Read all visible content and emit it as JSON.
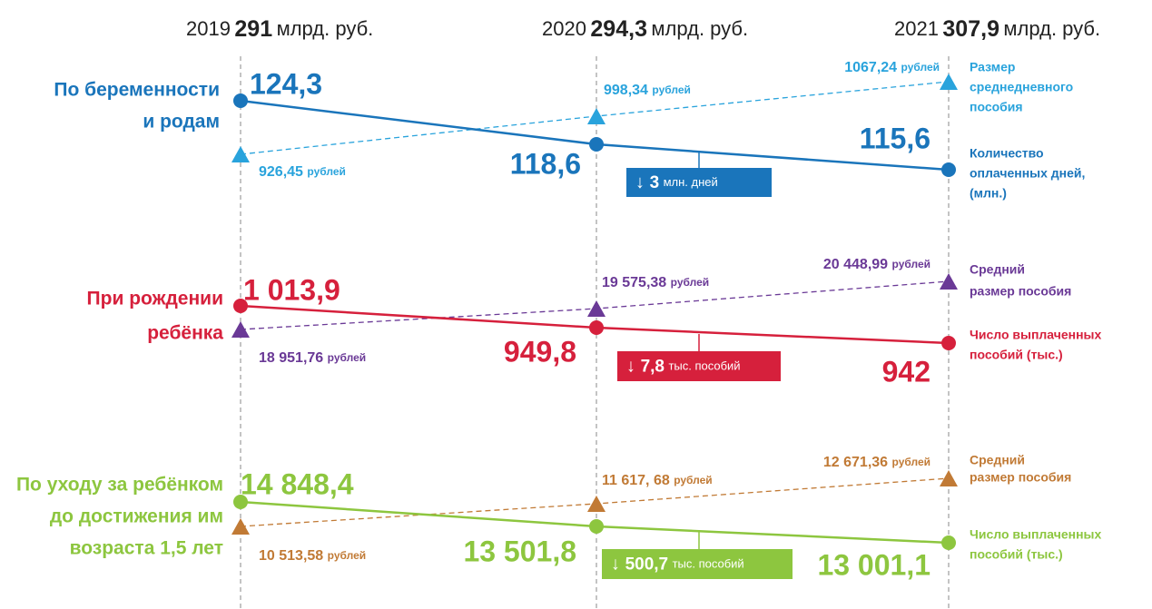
{
  "header": {
    "years": [
      {
        "year": "2019",
        "total": "291",
        "unit": "млрд. руб."
      },
      {
        "year": "2020",
        "total": "294,3",
        "unit": "млрд. руб."
      },
      {
        "year": "2021",
        "total": "307,9",
        "unit": "млрд. руб."
      }
    ]
  },
  "sections": [
    {
      "title": [
        "По беременности",
        "и родам"
      ],
      "count_color": "#1a75bb",
      "avg_color": "#29a3dc",
      "counts": [
        "124,3",
        "118,6",
        "115,6"
      ],
      "avgs": [
        "926,45",
        "998,34",
        "1067,24"
      ],
      "avg_unit": "рублей",
      "avg_legend": [
        "Размер",
        "среднедневного",
        "пособия"
      ],
      "count_legend": [
        "Количество",
        "оплаченных дней,",
        "(млн.)"
      ],
      "change": {
        "value": "3",
        "unit": "млн. дней"
      }
    },
    {
      "title": [
        "При рождении",
        "ребёнка"
      ],
      "count_color": "#d6203c",
      "avg_color": "#6a3996",
      "counts": [
        "1 013,9",
        "949,8",
        "942"
      ],
      "avgs": [
        "18 951,76",
        "19 575,38",
        "20 448,99"
      ],
      "avg_unit": "рублей",
      "avg_legend": [
        "Средний",
        "размер пособия"
      ],
      "count_legend": [
        "Число выплаченных",
        "пособий (тыс.)"
      ],
      "change": {
        "value": "7,8",
        "unit": "тыс. пособий"
      }
    },
    {
      "title": [
        "По уходу за ребёнком",
        "до достижения им",
        "возраста 1,5 лет"
      ],
      "count_color": "#8dc63f",
      "avg_color": "#c17a35",
      "counts": [
        "14 848,4",
        "13 501,8",
        "13 001,1"
      ],
      "avgs": [
        "10 513,58",
        "11 617, 68",
        "12 671,36"
      ],
      "avg_unit": "рублей",
      "avg_legend": [
        "Средний",
        "размер пособия"
      ],
      "count_legend": [
        "Число выплаченных",
        "пособий (тыс.)"
      ],
      "change": {
        "value": "500,7",
        "unit": "тыс. пособий"
      }
    }
  ]
}
